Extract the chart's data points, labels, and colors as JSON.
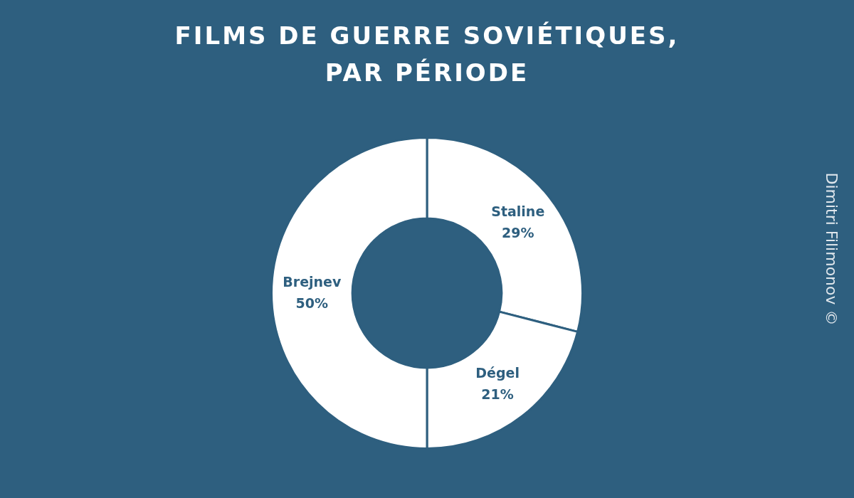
{
  "chart_data": {
    "type": "donut",
    "title": "FILMS DE GUERRE SOVIÉTIQUES,\nPAR PÉRIODE",
    "categories": [
      "Staline",
      "Dégel",
      "Brejnev"
    ],
    "values": [
      29,
      21,
      50
    ],
    "value_labels": [
      "29%",
      "21%",
      "50%"
    ],
    "colors": [
      "#ffffff",
      "#ffffff",
      "#ffffff"
    ],
    "legend": false,
    "annotations": [
      "Dimitri Filimonov ©"
    ]
  }
}
